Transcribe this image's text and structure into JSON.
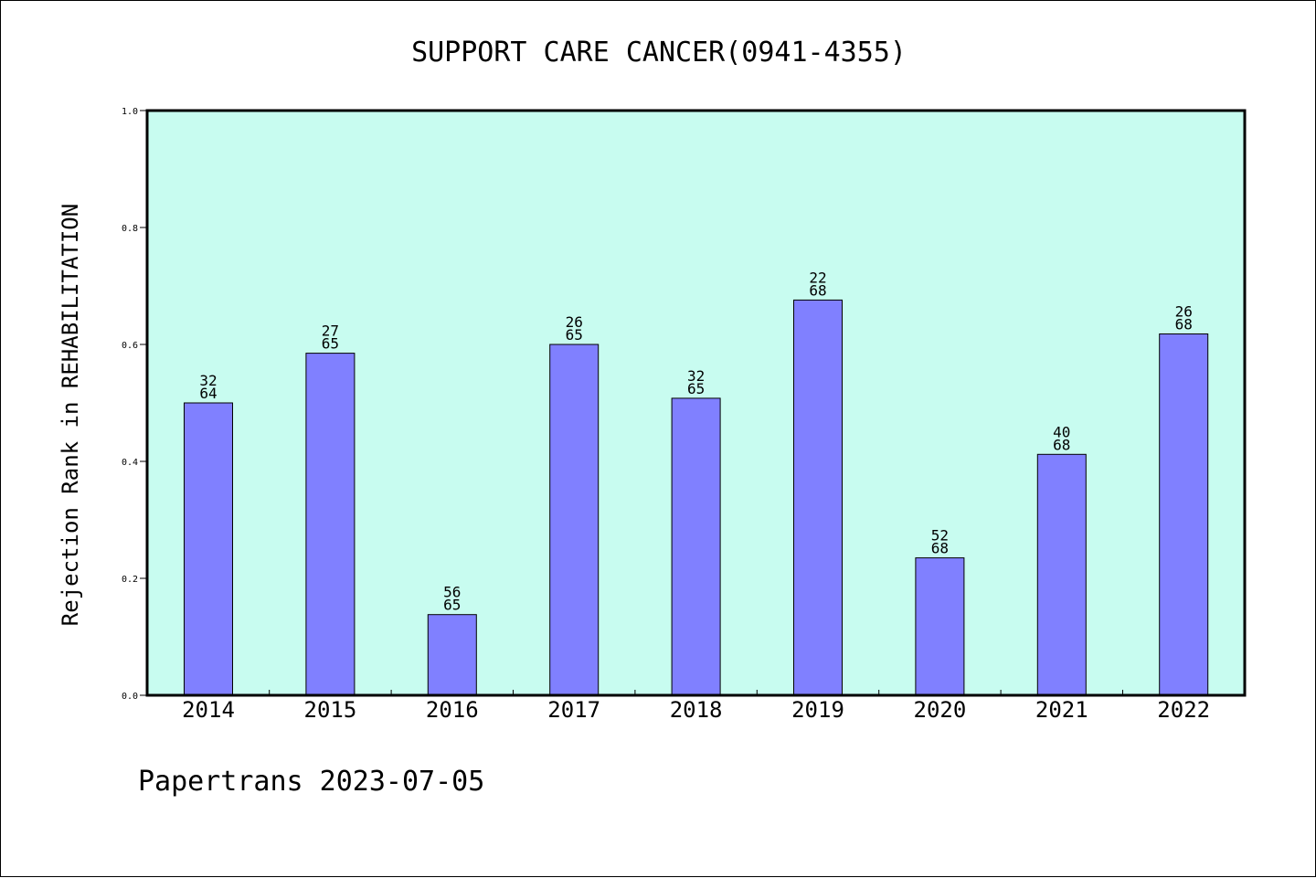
{
  "chart_data": {
    "type": "bar",
    "title": "SUPPORT CARE CANCER(0941-4355)",
    "xlabel": "",
    "ylabel": "Rejection Rank in REHABILITATION",
    "ylim": [
      0.0,
      1.0
    ],
    "yticks": [
      "0.0",
      "0.2",
      "0.4",
      "0.6",
      "0.8",
      "1.0"
    ],
    "grid": false,
    "legend": "none",
    "categories": [
      "2014",
      "2015",
      "2016",
      "2017",
      "2018",
      "2019",
      "2020",
      "2021",
      "2022"
    ],
    "values": [
      0.5,
      0.585,
      0.138,
      0.6,
      0.508,
      0.676,
      0.235,
      0.412,
      0.618
    ],
    "bar_labels": [
      {
        "rank": "32",
        "total": "64"
      },
      {
        "rank": "27",
        "total": "65"
      },
      {
        "rank": "56",
        "total": "65"
      },
      {
        "rank": "26",
        "total": "65"
      },
      {
        "rank": "32",
        "total": "65"
      },
      {
        "rank": "22",
        "total": "68"
      },
      {
        "rank": "52",
        "total": "68"
      },
      {
        "rank": "40",
        "total": "68"
      },
      {
        "rank": "26",
        "total": "68"
      }
    ],
    "colors": {
      "plot_background": "#c8fcf0",
      "bar_fill": "#8080ff",
      "bar_stroke": "#000000"
    }
  },
  "footer": {
    "text": "Papertrans 2023-07-05"
  }
}
